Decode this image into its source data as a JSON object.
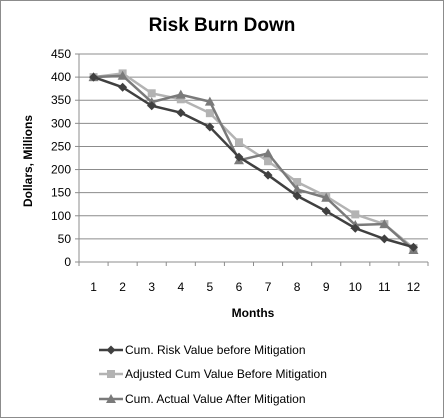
{
  "chart_data": {
    "type": "line",
    "title": "Risk Burn Down",
    "xlabel": "Months",
    "ylabel": "Dollars, Millions",
    "x": [
      1,
      2,
      3,
      4,
      5,
      6,
      7,
      8,
      9,
      10,
      11,
      12
    ],
    "ylim": [
      0,
      450
    ],
    "yticks": [
      0,
      50,
      100,
      150,
      200,
      250,
      300,
      350,
      400,
      450
    ],
    "grid": true,
    "legend_position": "bottom",
    "series": [
      {
        "name": "Cum.  Risk Value before Mitigation",
        "marker": "diamond",
        "color": "#404040",
        "values": [
          400,
          378,
          338,
          323,
          292,
          227,
          188,
          143,
          110,
          73,
          50,
          32
        ]
      },
      {
        "name": "Adjusted Cum Value Before Mitigation",
        "marker": "square",
        "color": "#b3b3b3",
        "values": [
          400,
          408,
          365,
          352,
          322,
          259,
          218,
          173,
          142,
          103,
          82,
          30
        ]
      },
      {
        "name": "Cum. Actual  Value After Mitigation",
        "marker": "triangle",
        "color": "#7a7a7a",
        "values": [
          400,
          403,
          346,
          362,
          347,
          220,
          235,
          157,
          139,
          80,
          82,
          26
        ]
      }
    ]
  }
}
